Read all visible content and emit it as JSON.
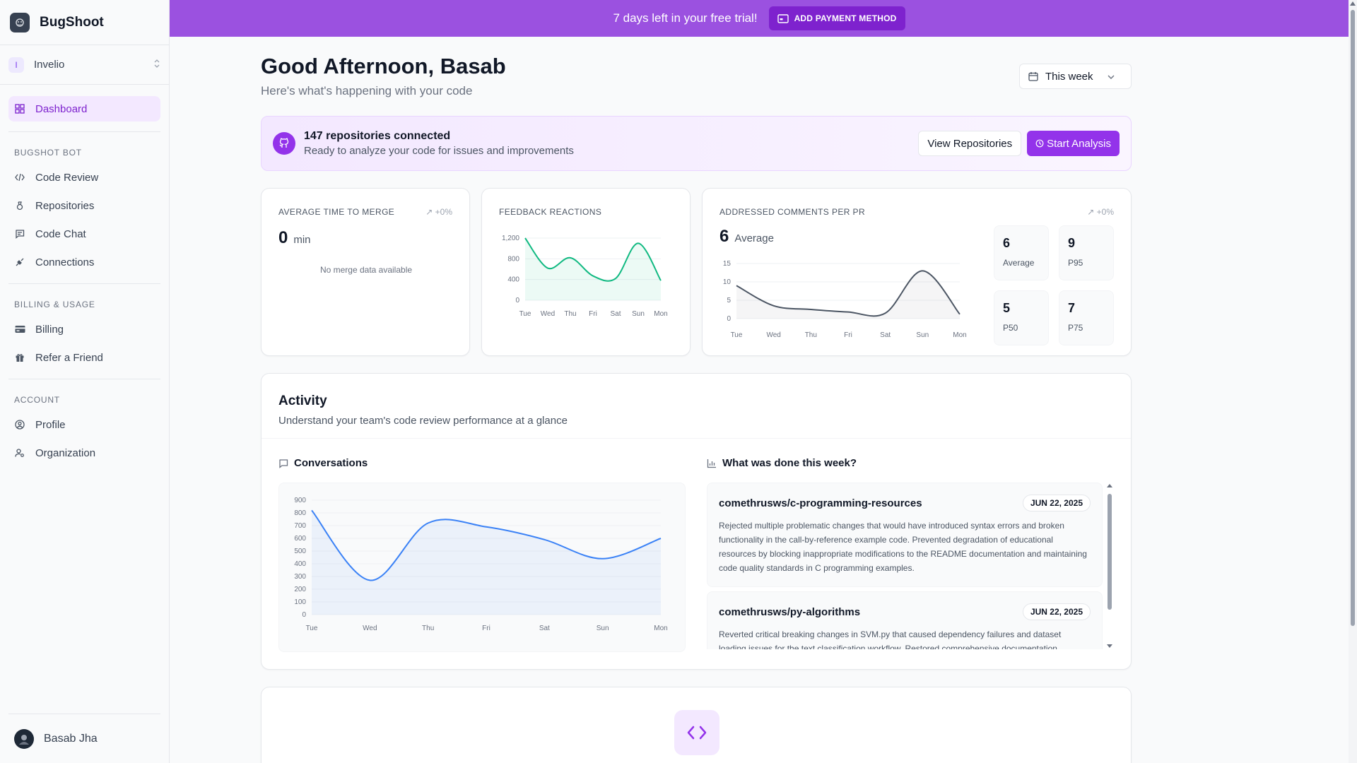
{
  "brand": {
    "name": "BugShoot"
  },
  "org": {
    "initial": "I",
    "name": "Invelio"
  },
  "nav": {
    "dashboard": "Dashboard",
    "sections": [
      {
        "heading": "BUGSHOT BOT",
        "items": [
          "Code Review",
          "Repositories",
          "Code Chat",
          "Connections"
        ]
      },
      {
        "heading": "BILLING & USAGE",
        "items": [
          "Billing",
          "Refer a Friend"
        ]
      },
      {
        "heading": "ACCOUNT",
        "items": [
          "Profile",
          "Organization"
        ]
      }
    ]
  },
  "user": {
    "name": "Basab Jha"
  },
  "banner": {
    "text": "7 days left in your free trial!",
    "button": "ADD PAYMENT METHOD"
  },
  "header": {
    "greeting": "Good Afternoon, Basab",
    "subtitle": "Here's what's happening with your code",
    "period": "This week"
  },
  "repos": {
    "title": "147 repositories connected",
    "subtitle": "Ready to analyze your code for issues and improvements",
    "view_button": "View Repositories",
    "start_button": "Start Analysis"
  },
  "metrics": {
    "merge": {
      "label": "AVERAGE TIME TO MERGE",
      "trend": "+0%",
      "value": "0",
      "unit": "min",
      "empty": "No merge data available"
    },
    "feedback": {
      "label": "FEEDBACK REACTIONS"
    },
    "comments": {
      "label": "ADDRESSED COMMENTS PER PR",
      "trend": "+0%",
      "value": "6",
      "unit": "Average",
      "stats": [
        {
          "value": "6",
          "label": "Average"
        },
        {
          "value": "9",
          "label": "P95"
        },
        {
          "value": "5",
          "label": "P50"
        },
        {
          "value": "7",
          "label": "P75"
        }
      ]
    }
  },
  "activity": {
    "title": "Activity",
    "subtitle": "Understand your team's code review performance at a glance",
    "conversations_label": "Conversations",
    "done_label": "What was done this week?",
    "items": [
      {
        "repo": "comethrusws/c-programming-resources",
        "date": "JUN 22, 2025",
        "desc": "Rejected multiple problematic changes that would have introduced syntax errors and broken functionality in the call-by-reference example code. Prevented degradation of educational resources by blocking inappropriate modifications to the README documentation and maintaining code quality standards in C programming examples."
      },
      {
        "repo": "comethrusws/py-algorithms",
        "date": "JUN 22, 2025",
        "desc": "Reverted critical breaking changes in SVM.py that caused dependency failures and dataset loading issues for the text classification workflow. Restored comprehensive documentation"
      }
    ]
  },
  "colors": {
    "accent": "#9333ea",
    "banner": "#9b51e0",
    "feedback_line": "#10b981",
    "comments_line": "#4b5563",
    "conversations_line": "#3b82f6"
  },
  "chart_data": [
    {
      "type": "area",
      "name": "feedback",
      "categories": [
        "Tue",
        "Wed",
        "Thu",
        "Fri",
        "Sat",
        "Sun",
        "Mon"
      ],
      "values": [
        1200,
        620,
        820,
        470,
        420,
        1100,
        380
      ],
      "yticks": [
        0,
        400,
        800,
        1200
      ],
      "tick_labels": [
        "0",
        "400",
        "800",
        "1,200"
      ],
      "ylim": [
        0,
        1200
      ]
    },
    {
      "type": "area",
      "name": "comments",
      "categories": [
        "Tue",
        "Wed",
        "Thu",
        "Fri",
        "Sat",
        "Sun",
        "Mon"
      ],
      "values": [
        9,
        3.5,
        2.5,
        1.8,
        1.5,
        13,
        1.2
      ],
      "yticks": [
        0,
        5,
        10,
        15
      ],
      "ylim": [
        0,
        15
      ]
    },
    {
      "type": "area",
      "name": "conversations",
      "categories": [
        "Tue",
        "Wed",
        "Thu",
        "Fri",
        "Sat",
        "Sun",
        "Mon"
      ],
      "values": [
        820,
        270,
        720,
        690,
        590,
        440,
        600
      ],
      "yticks": [
        0,
        100,
        200,
        300,
        400,
        500,
        600,
        700,
        800,
        900
      ],
      "ylim": [
        0,
        900
      ]
    }
  ]
}
